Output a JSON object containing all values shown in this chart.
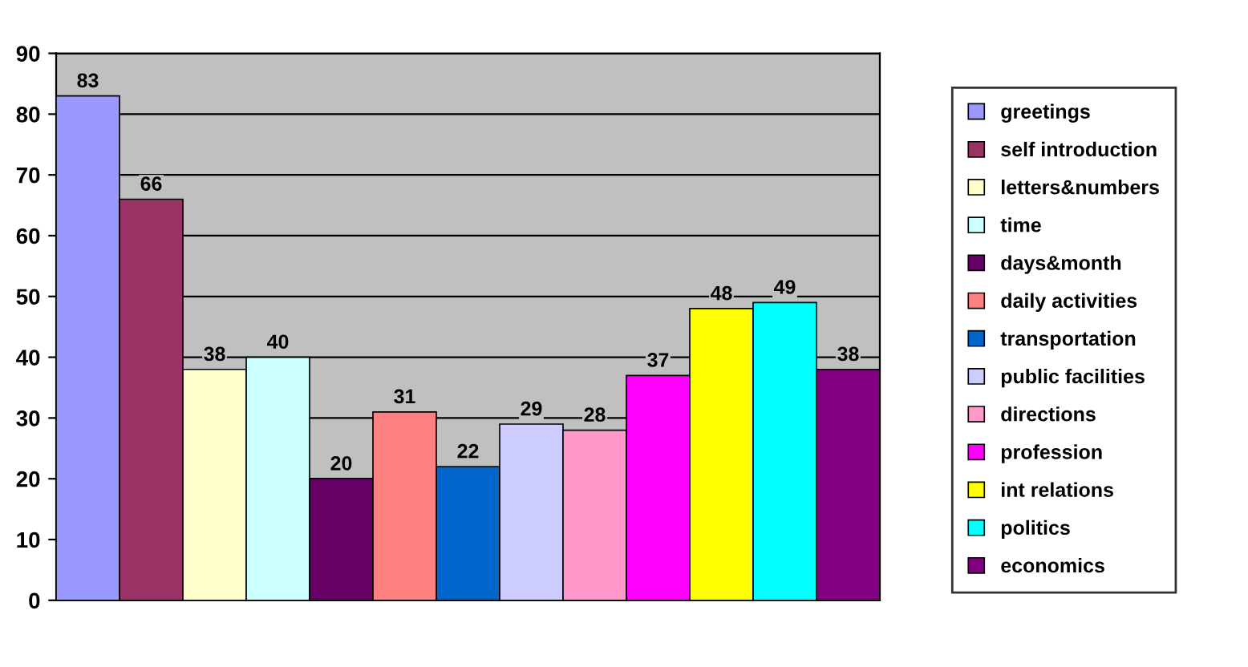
{
  "chart_data": {
    "type": "bar",
    "categories": [
      null
    ],
    "series": [
      {
        "name": "greetings",
        "color": "#9999ff",
        "values": [
          83
        ]
      },
      {
        "name": "self introduction",
        "color": "#993366",
        "values": [
          66
        ]
      },
      {
        "name": "letters&numbers",
        "color": "#ffffcc",
        "values": [
          38
        ]
      },
      {
        "name": "time",
        "color": "#ccffff",
        "values": [
          40
        ]
      },
      {
        "name": "days&month",
        "color": "#660066",
        "values": [
          20
        ]
      },
      {
        "name": "daily activities",
        "color": "#ff8080",
        "values": [
          31
        ]
      },
      {
        "name": "transportation",
        "color": "#0066cc",
        "values": [
          22
        ]
      },
      {
        "name": "public facilities",
        "color": "#ccccff",
        "values": [
          29
        ]
      },
      {
        "name": "directions",
        "color": "#ff99cc",
        "values": [
          28
        ]
      },
      {
        "name": "profession",
        "color": "#ff00ff",
        "values": [
          37
        ]
      },
      {
        "name": "int relations",
        "color": "#ffff00",
        "values": [
          48
        ]
      },
      {
        "name": "politics",
        "color": "#00ffff",
        "values": [
          49
        ]
      },
      {
        "name": "economics",
        "color": "#800080",
        "values": [
          38
        ]
      }
    ],
    "ylim": [
      0,
      90
    ],
    "yticks": [
      0,
      10,
      20,
      30,
      40,
      50,
      60,
      70,
      80,
      90
    ],
    "grid": "y",
    "legend": "right",
    "data_labels": true
  }
}
